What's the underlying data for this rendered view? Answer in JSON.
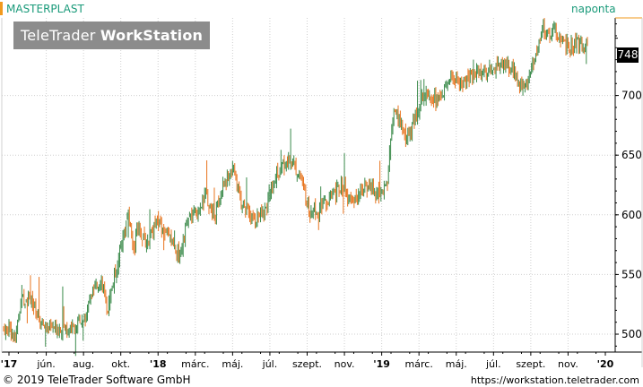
{
  "header": {
    "instrument": "MASTERPLAST",
    "frequency": "naponta",
    "watermark_regular": "TeleTrader ",
    "watermark_bold": "WorkStation"
  },
  "last_price_badge": "748",
  "footer": {
    "copyright": "© 2019 TeleTrader Software GmbH",
    "url": "https://workstation.teletrader.com"
  },
  "colors": {
    "up": "#3a8a4a",
    "down": "#e8741e",
    "accent": "#f29a1e",
    "title": "#1a9a7a",
    "grid": "#cfcfcf"
  },
  "chart_data": {
    "type": "ohlc",
    "title": "MASTERPLAST",
    "x_tick_labels": [
      "'17",
      "jún.",
      "aug.",
      "okt.",
      "'18",
      "márc.",
      "máj.",
      "júl.",
      "szept.",
      "nov.",
      "'19",
      "márc.",
      "máj.",
      "júl.",
      "szept.",
      "nov.",
      "'20"
    ],
    "y_ticks": [
      500,
      550,
      600,
      650,
      700
    ],
    "ylim": [
      485,
      765
    ],
    "last_value": 748,
    "grid": true,
    "path_x_t": [
      0,
      0.01,
      0.02,
      0.035,
      0.05,
      0.07,
      0.1,
      0.125,
      0.14,
      0.155,
      0.165,
      0.18,
      0.19,
      0.2,
      0.21,
      0.215,
      0.22,
      0.23,
      0.25,
      0.27,
      0.285,
      0.3,
      0.315,
      0.33,
      0.345,
      0.36,
      0.375,
      0.39,
      0.41,
      0.43,
      0.445,
      0.46,
      0.475,
      0.49,
      0.505,
      0.52,
      0.54,
      0.56,
      0.575,
      0.59,
      0.605,
      0.62,
      0.635,
      0.645,
      0.655,
      0.665,
      0.68,
      0.7,
      0.72,
      0.74,
      0.76,
      0.78,
      0.8,
      0.82,
      0.84,
      0.855,
      0.87,
      0.885,
      0.895,
      0.905,
      0.915,
      0.925,
      0.94,
      0.955,
      0.975,
      0.99,
      1
    ],
    "path_y": [
      505,
      495,
      528,
      532,
      510,
      505,
      505,
      510,
      535,
      545,
      520,
      555,
      580,
      600,
      570,
      590,
      585,
      575,
      595,
      580,
      565,
      595,
      605,
      615,
      600,
      625,
      640,
      610,
      595,
      605,
      630,
      640,
      645,
      630,
      600,
      605,
      615,
      625,
      610,
      620,
      625,
      615,
      630,
      690,
      680,
      660,
      680,
      705,
      695,
      715,
      710,
      720,
      720,
      725,
      725,
      710,
      712,
      735,
      760,
      750,
      755,
      745,
      740,
      745,
      740,
      748,
      748
    ]
  }
}
